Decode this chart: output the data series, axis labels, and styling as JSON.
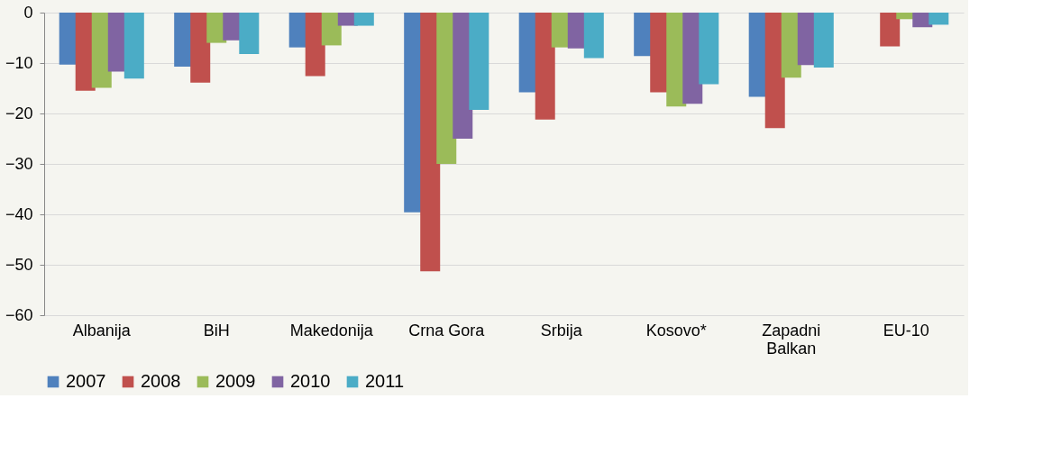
{
  "chart_data": {
    "type": "bar",
    "categories": [
      "Albanija",
      "BiH",
      "Makedonija",
      "Crna Gora",
      "Srbija",
      "Kosovo*",
      "Zapadni Balkan",
      "EU-10"
    ],
    "series": [
      {
        "name": "2007",
        "color": "#4f81bd",
        "values": [
          -10.3,
          -10.7,
          -6.9,
          -39.6,
          -15.8,
          -8.6,
          -16.7,
          null
        ]
      },
      {
        "name": "2008",
        "color": "#c0504d",
        "values": [
          -15.5,
          -13.9,
          -12.6,
          -51.3,
          -21.2,
          -15.8,
          -22.9,
          -6.7
        ]
      },
      {
        "name": "2009",
        "color": "#9bbb59",
        "values": [
          -14.9,
          -6.0,
          -6.5,
          -30.0,
          -6.9,
          -18.6,
          -12.9,
          -1.3
        ]
      },
      {
        "name": "2010",
        "color": "#8064a2",
        "values": [
          -11.7,
          -5.5,
          -2.6,
          -25.0,
          -7.1,
          -18.1,
          -10.4,
          -2.9
        ]
      },
      {
        "name": "2011",
        "color": "#4bacc6",
        "values": [
          -13.1,
          -8.2,
          -2.6,
          -19.3,
          -9.0,
          -14.2,
          -10.9,
          -2.4
        ]
      }
    ],
    "ylim": [
      -60,
      0
    ],
    "yticks": [
      -60,
      -50,
      -40,
      -30,
      -20,
      -10,
      0
    ],
    "grid": "y",
    "legend": "bottom"
  }
}
